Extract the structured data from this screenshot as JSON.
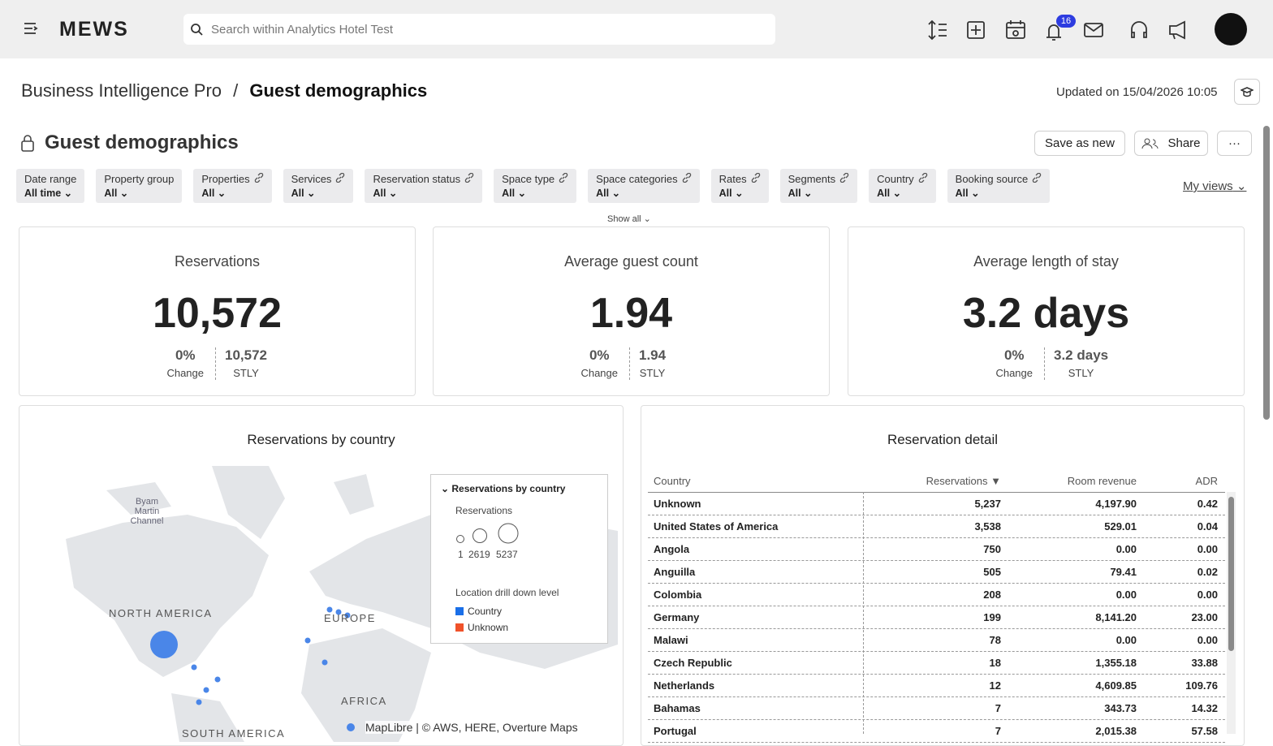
{
  "topbar": {
    "logo": "MEWS",
    "search_placeholder": "Search within Analytics Hotel Test",
    "notifications": "16"
  },
  "header": {
    "breadcrumb_parent": "Business Intelligence Pro",
    "separator": "/",
    "breadcrumb_current": "Guest demographics",
    "updated": "Updated on 15/04/2026 10:05"
  },
  "report": {
    "title": "Guest demographics",
    "save": "Save as new",
    "share": "Share"
  },
  "filters": [
    {
      "label": "Date range",
      "value": "All time",
      "linked": false
    },
    {
      "label": "Property group",
      "value": "All",
      "linked": false
    },
    {
      "label": "Properties",
      "value": "All",
      "linked": true
    },
    {
      "label": "Services",
      "value": "All",
      "linked": true
    },
    {
      "label": "Reservation status",
      "value": "All",
      "linked": true
    },
    {
      "label": "Space type",
      "value": "All",
      "linked": true
    },
    {
      "label": "Space categories",
      "value": "All",
      "linked": true
    },
    {
      "label": "Rates",
      "value": "All",
      "linked": true
    },
    {
      "label": "Segments",
      "value": "All",
      "linked": true
    },
    {
      "label": "Country",
      "value": "All",
      "linked": true
    },
    {
      "label": "Booking source",
      "value": "All",
      "linked": true
    }
  ],
  "show_all": "Show all",
  "my_views": "My views",
  "kpis": [
    {
      "title": "Reservations",
      "value": "10,572",
      "change": "0%",
      "change_label": "Change",
      "stly": "10,572",
      "stly_label": "STLY"
    },
    {
      "title": "Average guest count",
      "value": "1.94",
      "change": "0%",
      "change_label": "Change",
      "stly": "1.94",
      "stly_label": "STLY"
    },
    {
      "title": "Average length of stay",
      "value": "3.2 days",
      "change": "0%",
      "change_label": "Change",
      "stly": "3.2 days",
      "stly_label": "STLY"
    }
  ],
  "map": {
    "title": "Reservations by country",
    "labels": [
      "Byam Martin Channel",
      "NORTH AMERICA",
      "EUROPE",
      "AFRICA",
      "SOUTH AMERICA"
    ],
    "legend": {
      "title": "Reservations by country",
      "size_title": "Reservations",
      "sizes": [
        "1",
        "2619",
        "5237"
      ],
      "level_title": "Location drill down level",
      "levels": [
        {
          "name": "Country",
          "color": "#1a6fe8"
        },
        {
          "name": "Unknown",
          "color": "#f0522a"
        }
      ]
    },
    "attribution": "MapLibre | © AWS, HERE, Overture Maps"
  },
  "table": {
    "title": "Reservation detail",
    "columns": [
      "Country",
      "Reservations ▼",
      "Room revenue",
      "ADR"
    ],
    "rows": [
      [
        "Unknown",
        "5,237",
        "4,197.90",
        "0.42"
      ],
      [
        "United States of America",
        "3,538",
        "529.01",
        "0.04"
      ],
      [
        "Angola",
        "750",
        "0.00",
        "0.00"
      ],
      [
        "Anguilla",
        "505",
        "79.41",
        "0.02"
      ],
      [
        "Colombia",
        "208",
        "0.00",
        "0.00"
      ],
      [
        "Germany",
        "199",
        "8,141.20",
        "23.00"
      ],
      [
        "Malawi",
        "78",
        "0.00",
        "0.00"
      ],
      [
        "Czech Republic",
        "18",
        "1,355.18",
        "33.88"
      ],
      [
        "Netherlands",
        "12",
        "4,609.85",
        "109.76"
      ],
      [
        "Bahamas",
        "7",
        "343.73",
        "14.32"
      ],
      [
        "Portugal",
        "7",
        "2,015.38",
        "57.58"
      ]
    ]
  }
}
